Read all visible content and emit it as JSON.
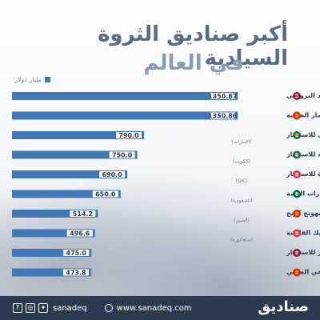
{
  "header": {
    "title": "أكبر صناديق الثروة السيادية",
    "subtitle": "في العالم",
    "unit_label": "مليار دولار"
  },
  "colors": {
    "bar": "#3f78b8",
    "value_box": "#ffffff",
    "value_text": "#2b3b4f",
    "label_text": "#2b3b4f"
  },
  "chart_data": {
    "type": "bar",
    "orientation": "horizontal",
    "unit": "مليار دولار",
    "xlim": [
      0,
      1400
    ],
    "categories": [
      "صندوق التقاعد النرويجي",
      "مؤسسة الاستثمار الصينية",
      "جهاز أبو ظبي للاستثمار",
      "الهيئة العامة للاستثمار",
      "شركة حكومة سنغافورة للاستثمار",
      "صندوق الاستثمارات العامة",
      "صندوق مؤسسة النقد بهونج كونج",
      "تماسيك القابضة",
      "جهاز قطر للاستثمار",
      "صندوق الضمان الاجتماعي الصيني"
    ],
    "sublabels": [
      "",
      "",
      "(الإمارات)",
      "(الكويت)",
      "(GIC)",
      "(السعودية)",
      "(الصين)",
      "(سنغافورة)",
      "",
      ""
    ],
    "values": [
      1350.87,
      1350.86,
      790.0,
      750.0,
      690.0,
      650.0,
      514.2,
      496.6,
      475.0,
      473.8
    ],
    "value_labels": [
      "1350.87",
      "1350.86",
      "790.0",
      "750.0",
      "690.0",
      "650.0",
      "514.2",
      "496.6",
      "475.0",
      "473.8"
    ],
    "flags": [
      "norway-flag-icon",
      "china-flag-icon",
      "uae-flag-icon",
      "kuwait-flag-icon",
      "singapore-flag-icon",
      "saudi-flag-icon",
      "china-flag-icon",
      "singapore-flag-icon",
      "qatar-flag-icon",
      "china-flag-icon"
    ]
  },
  "footer": {
    "handle": "sanadeq",
    "website": "www.sanadeq.com",
    "logo": "صناديق",
    "social_icons": [
      "facebook-icon",
      "instagram-icon",
      "twitter-icon"
    ]
  }
}
